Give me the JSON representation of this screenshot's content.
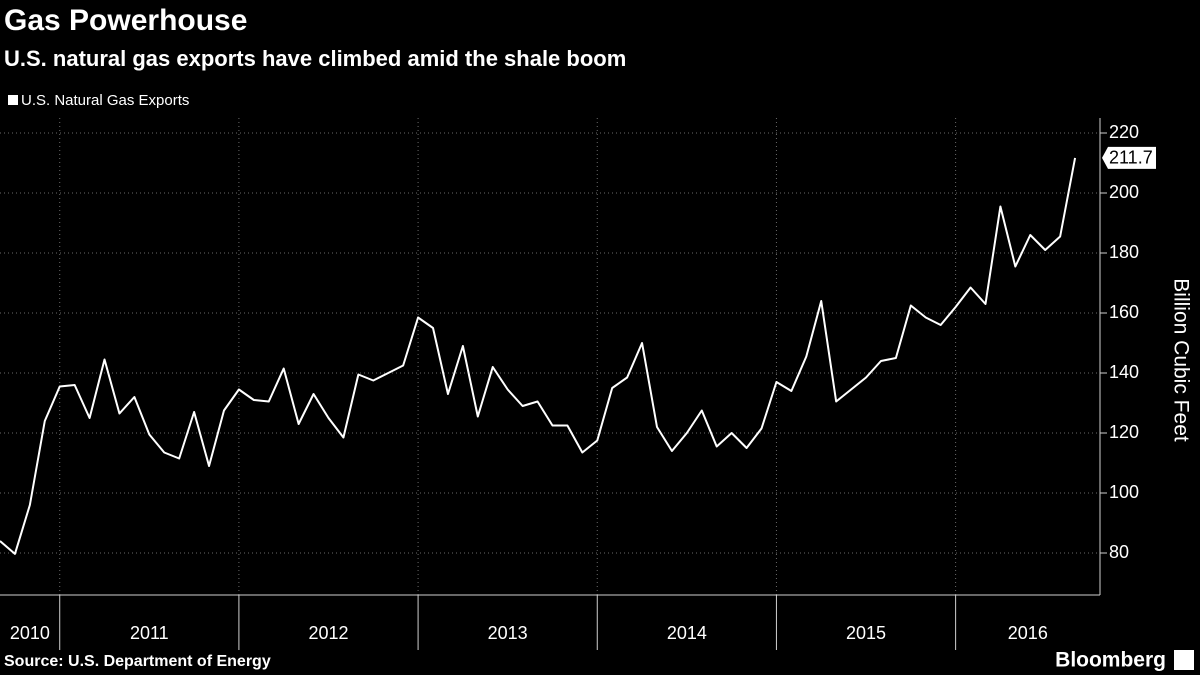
{
  "chart_data": {
    "type": "line",
    "title": "Gas Powerhouse",
    "subtitle": "U.S. natural gas exports have climbed amid the shale boom",
    "ylabel": "Billion Cubic Feet",
    "source": "Source: U.S. Department of Energy",
    "brand": "Bloomberg",
    "x": [
      "2010-09",
      "2010-10",
      "2010-11",
      "2010-12",
      "2011-01",
      "2011-02",
      "2011-03",
      "2011-04",
      "2011-05",
      "2011-06",
      "2011-07",
      "2011-08",
      "2011-09",
      "2011-10",
      "2011-11",
      "2011-12",
      "2012-01",
      "2012-02",
      "2012-03",
      "2012-04",
      "2012-05",
      "2012-06",
      "2012-07",
      "2012-08",
      "2012-09",
      "2012-10",
      "2012-11",
      "2012-12",
      "2013-01",
      "2013-02",
      "2013-03",
      "2013-04",
      "2013-05",
      "2013-06",
      "2013-07",
      "2013-08",
      "2013-09",
      "2013-10",
      "2013-11",
      "2013-12",
      "2014-01",
      "2014-02",
      "2014-03",
      "2014-04",
      "2014-05",
      "2014-06",
      "2014-07",
      "2014-08",
      "2014-09",
      "2014-10",
      "2014-11",
      "2014-12",
      "2015-01",
      "2015-02",
      "2015-03",
      "2015-04",
      "2015-05",
      "2015-06",
      "2015-07",
      "2015-08",
      "2015-09",
      "2015-10",
      "2015-11",
      "2015-12",
      "2016-01",
      "2016-02",
      "2016-03",
      "2016-04",
      "2016-05",
      "2016-06",
      "2016-07",
      "2016-08",
      "2016-09"
    ],
    "series": [
      {
        "name": "U.S. Natural Gas Exports",
        "color": "#ffffff",
        "values": [
          84,
          79.7,
          96,
          124,
          135.5,
          136,
          125,
          144.5,
          126.5,
          132,
          119.5,
          113.5,
          111.5,
          127,
          109,
          127.5,
          134.5,
          131,
          130.5,
          141.5,
          123,
          133,
          125,
          118.5,
          139.5,
          137.5,
          140,
          142.5,
          158.5,
          155,
          133,
          149,
          125.5,
          142,
          134.5,
          129,
          130.5,
          122.5,
          122.5,
          113.5,
          117.5,
          135,
          138.5,
          150,
          122,
          114,
          120,
          127.5,
          115.5,
          120,
          115,
          121.5,
          137,
          134,
          145.5,
          164,
          130.5,
          134.5,
          138.5,
          144,
          145,
          162.5,
          158.5,
          156,
          162,
          168.5,
          163,
          195.5,
          175.5,
          186,
          181,
          185.5,
          211.7
        ]
      }
    ],
    "xlim": [
      "2010-09",
      "2016-10"
    ],
    "xticks": [
      "2011-01",
      "2012-01",
      "2013-01",
      "2014-01",
      "2015-01",
      "2016-01"
    ],
    "xtick_labels": [
      "2010",
      "2011",
      "2012",
      "2013",
      "2014",
      "2015",
      "2016"
    ],
    "ylim": [
      66,
      225
    ],
    "yticks": [
      80,
      100,
      120,
      140,
      160,
      180,
      200,
      220
    ],
    "grid": true,
    "legend": "top-left",
    "last_value_label": true
  }
}
